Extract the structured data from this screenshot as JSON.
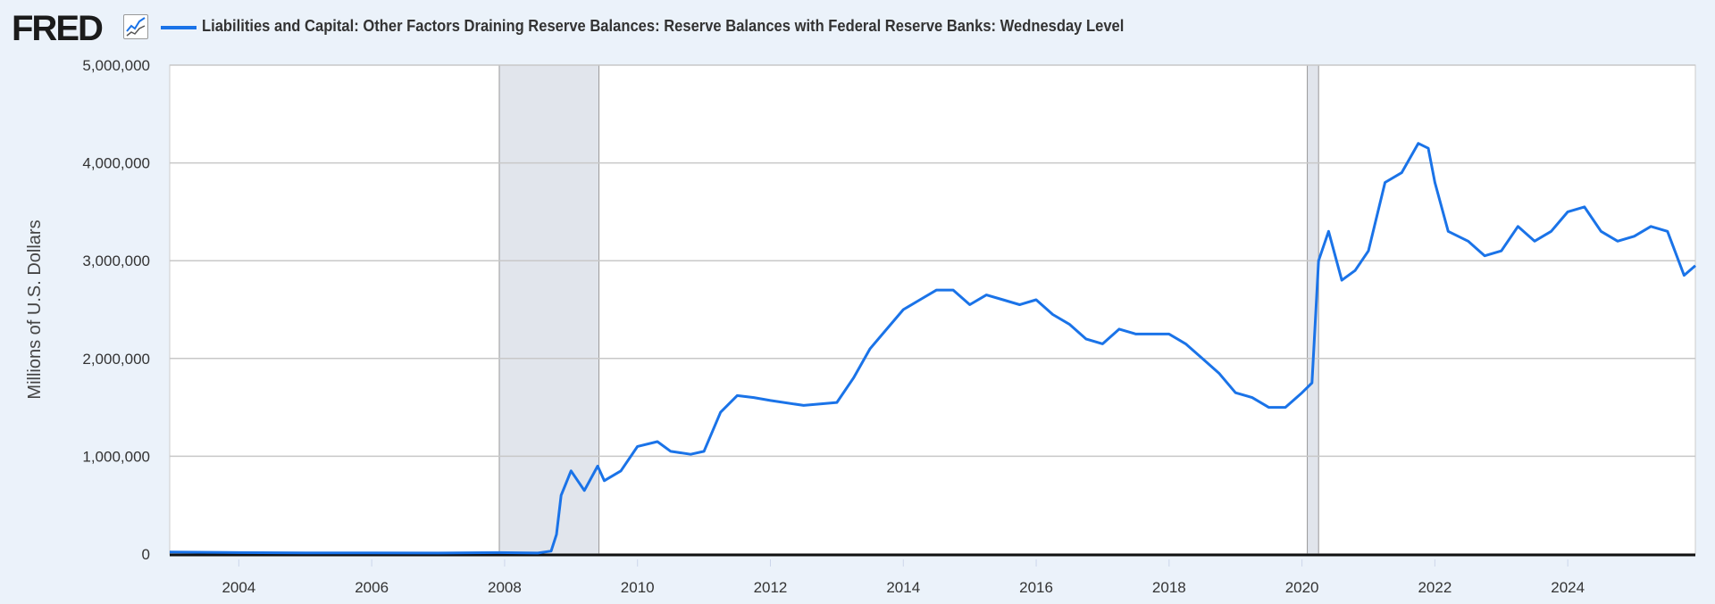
{
  "header": {
    "logo": "FRED",
    "logo_icon": "chart-line-icon",
    "series_title": "Liabilities and Capital: Other Factors Draining Reserve Balances: Reserve Balances with Federal Reserve Banks: Wednesday Level",
    "series_color": "#1a73e8"
  },
  "chart_data": {
    "type": "line",
    "title": "Liabilities and Capital: Other Factors Draining Reserve Balances: Reserve Balances with Federal Reserve Banks: Wednesday Level",
    "xlabel": "",
    "ylabel": "Millions of U.S. Dollars",
    "xlim": [
      2002.96,
      2025.92
    ],
    "ylim": [
      0,
      5000000
    ],
    "grid": true,
    "x_ticks": [
      "2004",
      "2006",
      "2008",
      "2010",
      "2012",
      "2014",
      "2016",
      "2018",
      "2020",
      "2022",
      "2024"
    ],
    "y_ticks": [
      "0",
      "1,000,000",
      "2,000,000",
      "3,000,000",
      "4,000,000",
      "5,000,000"
    ],
    "recessions": [
      [
        2007.92,
        2009.42
      ],
      [
        2020.08,
        2020.25
      ]
    ],
    "series": [
      {
        "name": "Reserve Balances with Federal Reserve Banks",
        "x": [
          2002.96,
          2004,
          2005,
          2006,
          2007,
          2007.9,
          2008.5,
          2008.7,
          2008.78,
          2008.85,
          2009.0,
          2009.2,
          2009.4,
          2009.5,
          2009.75,
          2010.0,
          2010.3,
          2010.5,
          2010.8,
          2011.0,
          2011.25,
          2011.5,
          2011.75,
          2012.0,
          2012.5,
          2013.0,
          2013.25,
          2013.5,
          2013.75,
          2014.0,
          2014.25,
          2014.5,
          2014.75,
          2015.0,
          2015.25,
          2015.5,
          2015.75,
          2016.0,
          2016.25,
          2016.5,
          2016.75,
          2017.0,
          2017.25,
          2017.5,
          2017.75,
          2018.0,
          2018.25,
          2018.5,
          2018.75,
          2019.0,
          2019.25,
          2019.5,
          2019.75,
          2020.0,
          2020.15,
          2020.25,
          2020.4,
          2020.6,
          2020.8,
          2021.0,
          2021.25,
          2021.5,
          2021.75,
          2021.9,
          2022.0,
          2022.2,
          2022.5,
          2022.75,
          2023.0,
          2023.25,
          2023.5,
          2023.75,
          2024.0,
          2024.25,
          2024.5,
          2024.75,
          2025.0,
          2025.25,
          2025.5,
          2025.75,
          2025.92
        ],
        "values": [
          20000,
          15000,
          12000,
          12000,
          10000,
          15000,
          10000,
          30000,
          200000,
          600000,
          850000,
          650000,
          900000,
          750000,
          850000,
          1100000,
          1150000,
          1050000,
          1020000,
          1050000,
          1450000,
          1620000,
          1600000,
          1570000,
          1520000,
          1550000,
          1800000,
          2100000,
          2300000,
          2500000,
          2600000,
          2700000,
          2700000,
          2550000,
          2650000,
          2600000,
          2550000,
          2600000,
          2450000,
          2350000,
          2200000,
          2150000,
          2300000,
          2250000,
          2250000,
          2250000,
          2150000,
          2000000,
          1850000,
          1650000,
          1600000,
          1500000,
          1500000,
          1650000,
          1750000,
          3000000,
          3300000,
          2800000,
          2900000,
          3100000,
          3800000,
          3900000,
          4200000,
          4150000,
          3800000,
          3300000,
          3200000,
          3050000,
          3100000,
          3350000,
          3200000,
          3300000,
          3500000,
          3550000,
          3300000,
          3200000,
          3250000,
          3350000,
          3300000,
          2850000,
          2950000
        ]
      }
    ]
  }
}
